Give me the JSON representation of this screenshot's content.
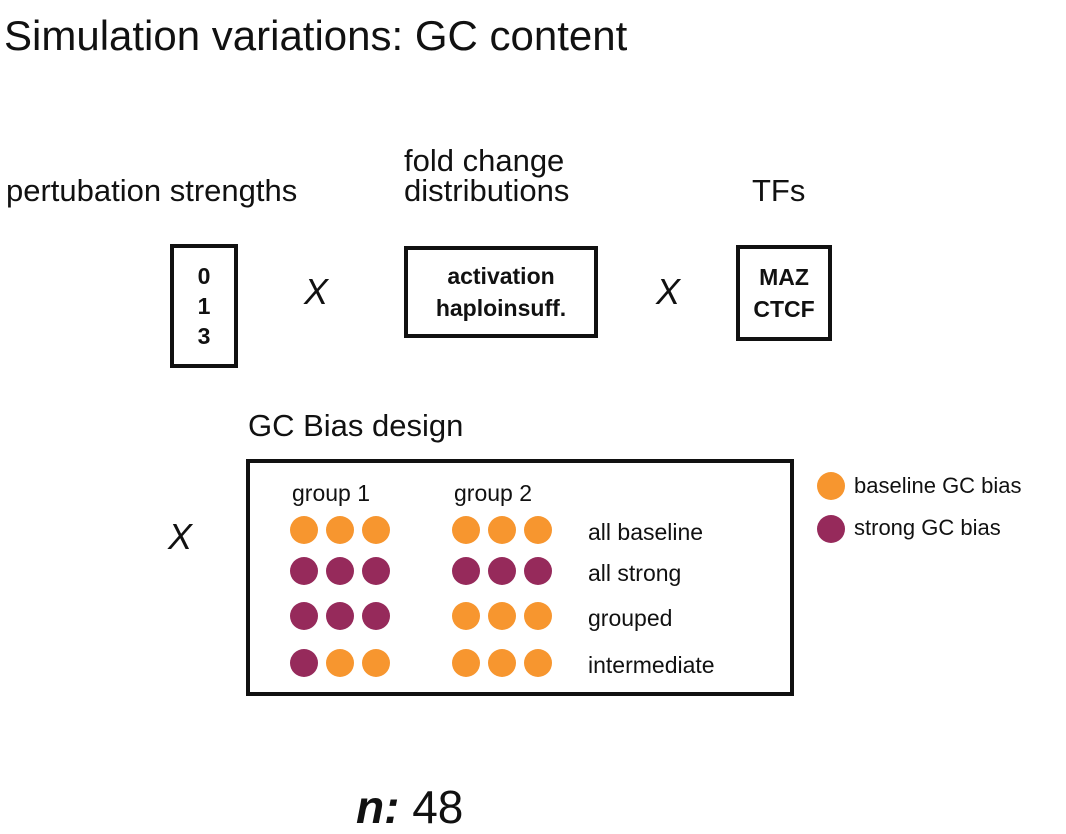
{
  "title": "Simulation variations: GC content",
  "factors": {
    "perturbation": {
      "heading": "pertubation strengths",
      "values": [
        "0",
        "1",
        "3"
      ]
    },
    "fold_change": {
      "heading_line1": "fold change",
      "heading_line2": "distributions",
      "values": [
        "activation",
        "haploinsuff."
      ]
    },
    "tfs": {
      "heading": "TFs",
      "values": [
        "MAZ",
        "CTCF"
      ]
    },
    "times_symbol": "X"
  },
  "gc_design": {
    "heading": "GC Bias design",
    "group_labels": [
      "group 1",
      "group 2"
    ],
    "rows": [
      {
        "label": "all baseline",
        "group1": [
          "baseline",
          "baseline",
          "baseline"
        ],
        "group2": [
          "baseline",
          "baseline",
          "baseline"
        ]
      },
      {
        "label": "all strong",
        "group1": [
          "strong",
          "strong",
          "strong"
        ],
        "group2": [
          "strong",
          "strong",
          "strong"
        ]
      },
      {
        "label": "grouped",
        "group1": [
          "strong",
          "strong",
          "strong"
        ],
        "group2": [
          "baseline",
          "baseline",
          "baseline"
        ]
      },
      {
        "label": "intermediate",
        "group1": [
          "strong",
          "baseline",
          "baseline"
        ],
        "group2": [
          "baseline",
          "baseline",
          "baseline"
        ]
      }
    ]
  },
  "legend": [
    {
      "key": "baseline",
      "label": "baseline GC bias",
      "color": "#F7962F"
    },
    {
      "key": "strong",
      "label": "strong GC bias",
      "color": "#962A5B"
    }
  ],
  "total": {
    "label": "n:",
    "value": "48"
  }
}
